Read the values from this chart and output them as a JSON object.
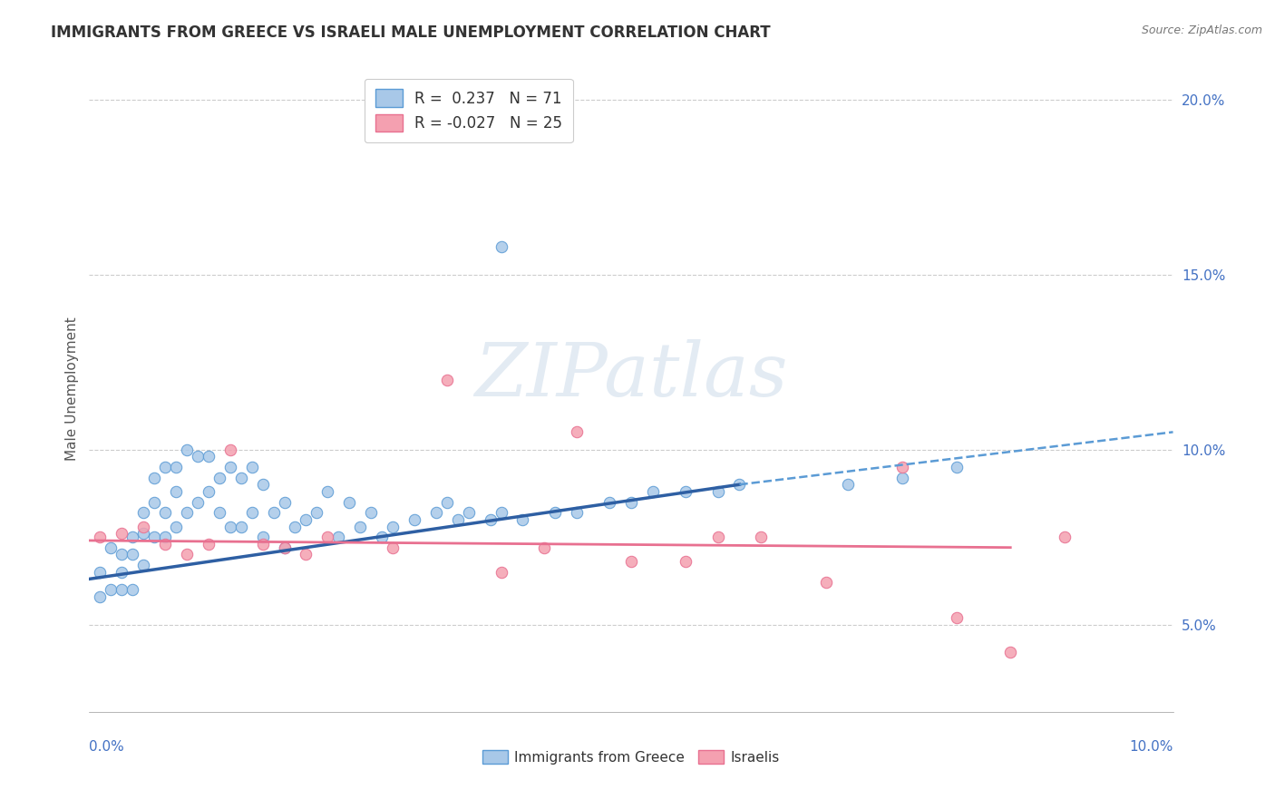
{
  "title": "IMMIGRANTS FROM GREECE VS ISRAELI MALE UNEMPLOYMENT CORRELATION CHART",
  "source": "Source: ZipAtlas.com",
  "ylabel": "Male Unemployment",
  "xlim": [
    0.0,
    0.1
  ],
  "ylim": [
    0.025,
    0.21
  ],
  "yticks": [
    0.05,
    0.1,
    0.15,
    0.2
  ],
  "ytick_labels": [
    "5.0%",
    "10.0%",
    "15.0%",
    "20.0%"
  ],
  "xtick_labels_bottom": [
    "0.0%",
    "10.0%"
  ],
  "xticks_bottom": [
    0.0,
    0.1
  ],
  "watermark": "ZIPatlas",
  "blue_scatter_x": [
    0.001,
    0.001,
    0.002,
    0.002,
    0.003,
    0.003,
    0.003,
    0.004,
    0.004,
    0.004,
    0.005,
    0.005,
    0.005,
    0.006,
    0.006,
    0.006,
    0.007,
    0.007,
    0.007,
    0.008,
    0.008,
    0.008,
    0.009,
    0.009,
    0.01,
    0.01,
    0.011,
    0.011,
    0.012,
    0.012,
    0.013,
    0.013,
    0.014,
    0.014,
    0.015,
    0.015,
    0.016,
    0.016,
    0.017,
    0.018,
    0.018,
    0.019,
    0.02,
    0.021,
    0.022,
    0.023,
    0.024,
    0.025,
    0.026,
    0.027,
    0.028,
    0.03,
    0.032,
    0.033,
    0.034,
    0.035,
    0.037,
    0.038,
    0.04,
    0.043,
    0.045,
    0.048,
    0.05,
    0.052,
    0.055,
    0.058,
    0.06,
    0.038,
    0.07,
    0.075,
    0.08
  ],
  "blue_scatter_y": [
    0.065,
    0.058,
    0.072,
    0.06,
    0.07,
    0.065,
    0.06,
    0.075,
    0.07,
    0.06,
    0.082,
    0.076,
    0.067,
    0.092,
    0.085,
    0.075,
    0.095,
    0.082,
    0.075,
    0.095,
    0.088,
    0.078,
    0.1,
    0.082,
    0.098,
    0.085,
    0.098,
    0.088,
    0.092,
    0.082,
    0.095,
    0.078,
    0.092,
    0.078,
    0.095,
    0.082,
    0.09,
    0.075,
    0.082,
    0.085,
    0.072,
    0.078,
    0.08,
    0.082,
    0.088,
    0.075,
    0.085,
    0.078,
    0.082,
    0.075,
    0.078,
    0.08,
    0.082,
    0.085,
    0.08,
    0.082,
    0.08,
    0.082,
    0.08,
    0.082,
    0.082,
    0.085,
    0.085,
    0.088,
    0.088,
    0.088,
    0.09,
    0.158,
    0.09,
    0.092,
    0.095
  ],
  "pink_scatter_x": [
    0.001,
    0.003,
    0.005,
    0.007,
    0.009,
    0.011,
    0.013,
    0.016,
    0.018,
    0.02,
    0.022,
    0.028,
    0.033,
    0.038,
    0.042,
    0.045,
    0.05,
    0.055,
    0.058,
    0.062,
    0.068,
    0.075,
    0.08,
    0.085,
    0.09
  ],
  "pink_scatter_y": [
    0.075,
    0.076,
    0.078,
    0.073,
    0.07,
    0.073,
    0.1,
    0.073,
    0.072,
    0.07,
    0.075,
    0.072,
    0.12,
    0.065,
    0.072,
    0.105,
    0.068,
    0.068,
    0.075,
    0.075,
    0.062,
    0.095,
    0.052,
    0.042,
    0.075
  ],
  "blue_solid_line_x": [
    0.0,
    0.06
  ],
  "blue_solid_line_y": [
    0.063,
    0.09
  ],
  "blue_dash_line_x": [
    0.06,
    0.1
  ],
  "blue_dash_line_y": [
    0.09,
    0.105
  ],
  "pink_line_x": [
    0.0,
    0.085
  ],
  "pink_line_y": [
    0.074,
    0.072
  ],
  "blue_scatter_color": "#a8c8e8",
  "blue_scatter_edge": "#5b9bd5",
  "pink_scatter_color": "#f4a0b0",
  "pink_scatter_edge": "#e87090",
  "blue_line_color": "#2e5fa3",
  "blue_dash_color": "#5b9bd5",
  "pink_line_color": "#e87090",
  "grid_color": "#cccccc",
  "background_color": "#ffffff",
  "title_fontsize": 12,
  "axis_label_fontsize": 11,
  "tick_fontsize": 11,
  "ytick_color": "#4472c4",
  "xtick_color": "#4472c4",
  "scatter_size": 80,
  "blue_legend_color": "#a8c8e8",
  "pink_legend_color": "#f4a0b0",
  "legend_R_color": "#555555",
  "legend_N_color": "#4472c4"
}
